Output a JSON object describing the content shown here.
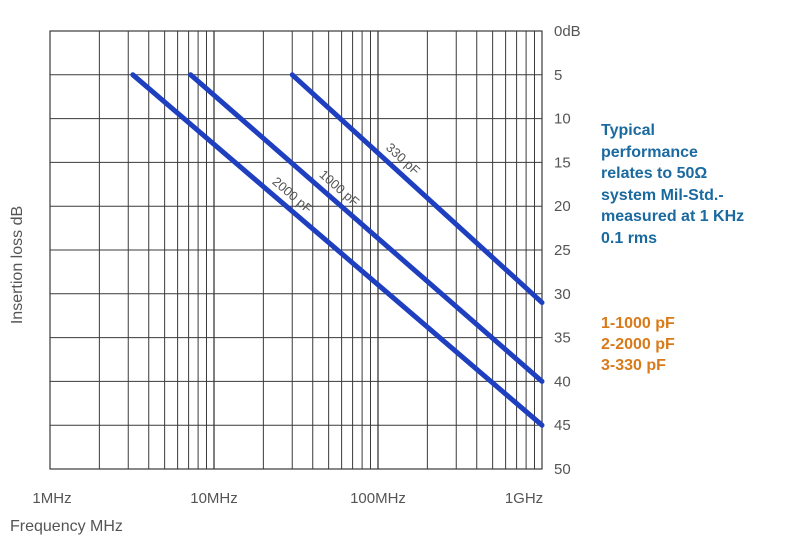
{
  "chart_data": {
    "type": "line",
    "x_scale": "log",
    "y_reversed": true,
    "xlim_mhz": [
      1,
      1000
    ],
    "ylim": [
      0,
      50
    ],
    "grid": true,
    "xlabel": "Frequency MHz",
    "ylabel": "Insertion loss dB",
    "x_tick_labels": [
      "1MHz",
      "10MHz",
      "100MHz",
      "1GHz"
    ],
    "x_tick_values_mhz": [
      1,
      10,
      100,
      1000
    ],
    "y_tick_labels": [
      "0dB",
      "5",
      "10",
      "15",
      "20",
      "25",
      "30",
      "35",
      "40",
      "45",
      "50"
    ],
    "y_tick_values": [
      0,
      5,
      10,
      15,
      20,
      25,
      30,
      35,
      40,
      45,
      50
    ],
    "series": [
      {
        "name": "330 pF",
        "color": "#1e3fbf",
        "x_mhz": [
          30,
          1000
        ],
        "y": [
          5,
          31
        ]
      },
      {
        "name": "1000 pF",
        "color": "#1e3fbf",
        "x_mhz": [
          7.2,
          1000
        ],
        "y": [
          5,
          40
        ]
      },
      {
        "name": "2000 pF",
        "color": "#1e3fbf",
        "x_mhz": [
          3.2,
          1000
        ],
        "y": [
          5,
          45
        ]
      }
    ]
  },
  "note": {
    "lines": [
      "Typical",
      "performance",
      "relates to 50Ω",
      "system Mil-Std.-",
      "measured at 1 KHz",
      "0.1 rms"
    ],
    "color": "#1a6aa0"
  },
  "legend": {
    "lines": [
      "1-1000 pF",
      "2-2000 pF",
      "3-330 pF"
    ],
    "color": "#d97a1a"
  }
}
